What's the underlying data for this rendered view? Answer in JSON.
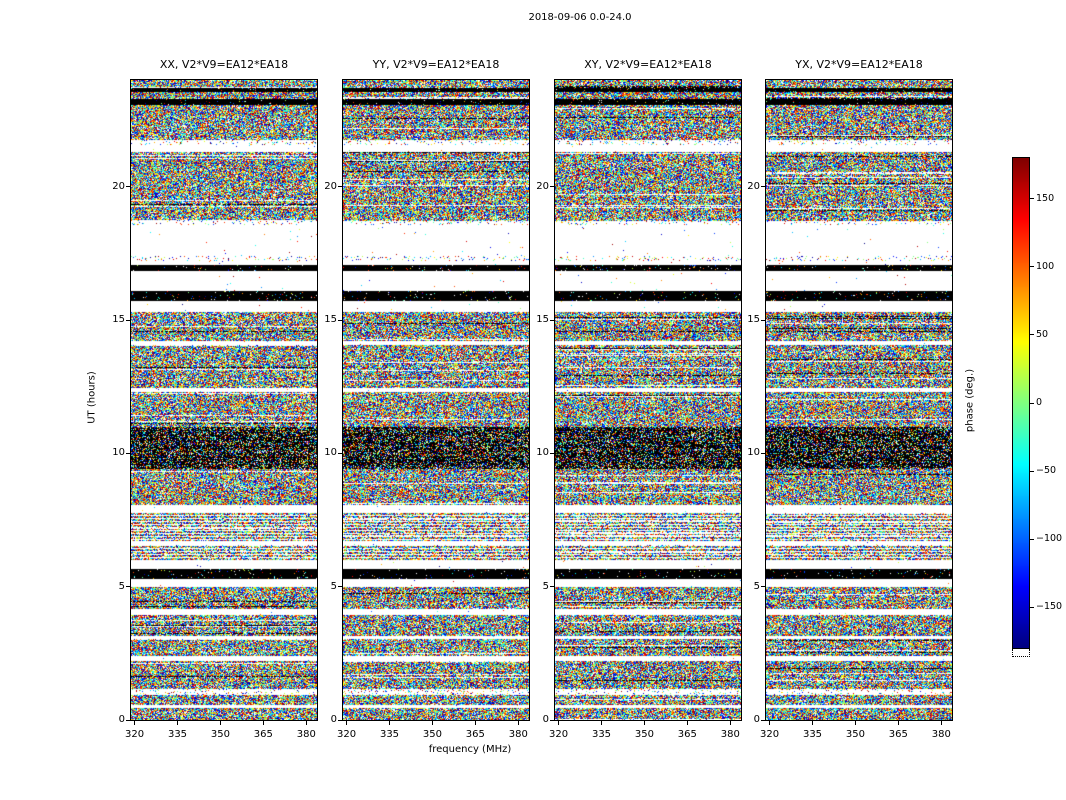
{
  "figure": {
    "suptitle": "2018-09-06 0.0-24.0",
    "xlabel": "frequency (MHz)",
    "ylabel": "UT (hours)",
    "colorbar_label": "phase (deg.)"
  },
  "chart_data": {
    "type": "heatmap",
    "title": "2018-09-06 0.0-24.0",
    "description": "Four dynamic-spectrum heatmap panels of interferometer baseline phase (polarization products XX, YY, XY, YX for baseline V2*V9=EA12*EA18) versus frequency and UT time. Pixel values are uniformly random noise-like phases spanning -180 to +180 deg (jet colormap), organised in horizontal time bands: dense colored noise, blank (white) gaps with no data, solid black flagged rows, sparse dotted rows and a darker dense band near 9.4-11.0 h.",
    "panels": [
      {
        "title": "XX, V2*V9=EA12*EA18",
        "seed": 101
      },
      {
        "title": "YY, V2*V9=EA12*EA18",
        "seed": 202
      },
      {
        "title": "XY, V2*V9=EA12*EA18",
        "seed": 303
      },
      {
        "title": "YX, V2*V9=EA12*EA18",
        "seed": 404
      }
    ],
    "x_axis": {
      "label": "frequency (MHz)",
      "range": [
        318.75,
        383.75
      ],
      "ticks": [
        320,
        335,
        350,
        365,
        380
      ]
    },
    "y_axis": {
      "label": "UT (hours)",
      "range": [
        0,
        24
      ],
      "ticks": [
        0,
        5,
        10,
        15,
        20
      ]
    },
    "colorbar": {
      "label": "phase (deg.)",
      "colormap": "jet",
      "range": [
        -180,
        180
      ],
      "ticks": [
        150,
        100,
        50,
        0,
        -50,
        -100,
        -150
      ]
    },
    "time_bands": [
      [
        0.0,
        0.45,
        "noise"
      ],
      [
        0.45,
        0.55,
        "white"
      ],
      [
        0.55,
        0.95,
        "noise"
      ],
      [
        0.95,
        1.15,
        "sparse"
      ],
      [
        1.15,
        2.2,
        "noise"
      ],
      [
        2.2,
        2.4,
        "white"
      ],
      [
        2.4,
        3.05,
        "noise"
      ],
      [
        3.05,
        3.15,
        "white"
      ],
      [
        3.15,
        3.95,
        "noise"
      ],
      [
        3.95,
        4.15,
        "white"
      ],
      [
        4.15,
        5.0,
        "noise"
      ],
      [
        5.0,
        5.3,
        "white"
      ],
      [
        5.3,
        5.65,
        "black"
      ],
      [
        5.65,
        6.0,
        "white"
      ],
      [
        6.0,
        6.55,
        "striped"
      ],
      [
        6.55,
        6.7,
        "white"
      ],
      [
        6.7,
        7.75,
        "striped"
      ],
      [
        7.75,
        8.05,
        "white"
      ],
      [
        8.05,
        9.4,
        "noise"
      ],
      [
        9.4,
        11.0,
        "dark"
      ],
      [
        11.0,
        12.3,
        "noise"
      ],
      [
        12.3,
        12.45,
        "white"
      ],
      [
        12.45,
        14.05,
        "noise"
      ],
      [
        14.05,
        14.2,
        "white"
      ],
      [
        14.2,
        15.3,
        "noise"
      ],
      [
        15.3,
        15.7,
        "white"
      ],
      [
        15.7,
        16.1,
        "black"
      ],
      [
        16.1,
        16.85,
        "white"
      ],
      [
        16.85,
        17.05,
        "black"
      ],
      [
        17.05,
        17.2,
        "white"
      ],
      [
        17.2,
        17.4,
        "sparse"
      ],
      [
        17.4,
        18.55,
        "white"
      ],
      [
        18.55,
        18.7,
        "sparse"
      ],
      [
        18.7,
        21.3,
        "noise"
      ],
      [
        21.3,
        21.55,
        "white"
      ],
      [
        21.55,
        21.75,
        "sparse"
      ],
      [
        21.75,
        23.05,
        "noise"
      ],
      [
        23.05,
        23.3,
        "black"
      ],
      [
        23.3,
        23.55,
        "noise"
      ],
      [
        23.55,
        23.7,
        "black"
      ],
      [
        23.7,
        24.0,
        "noise"
      ]
    ]
  }
}
